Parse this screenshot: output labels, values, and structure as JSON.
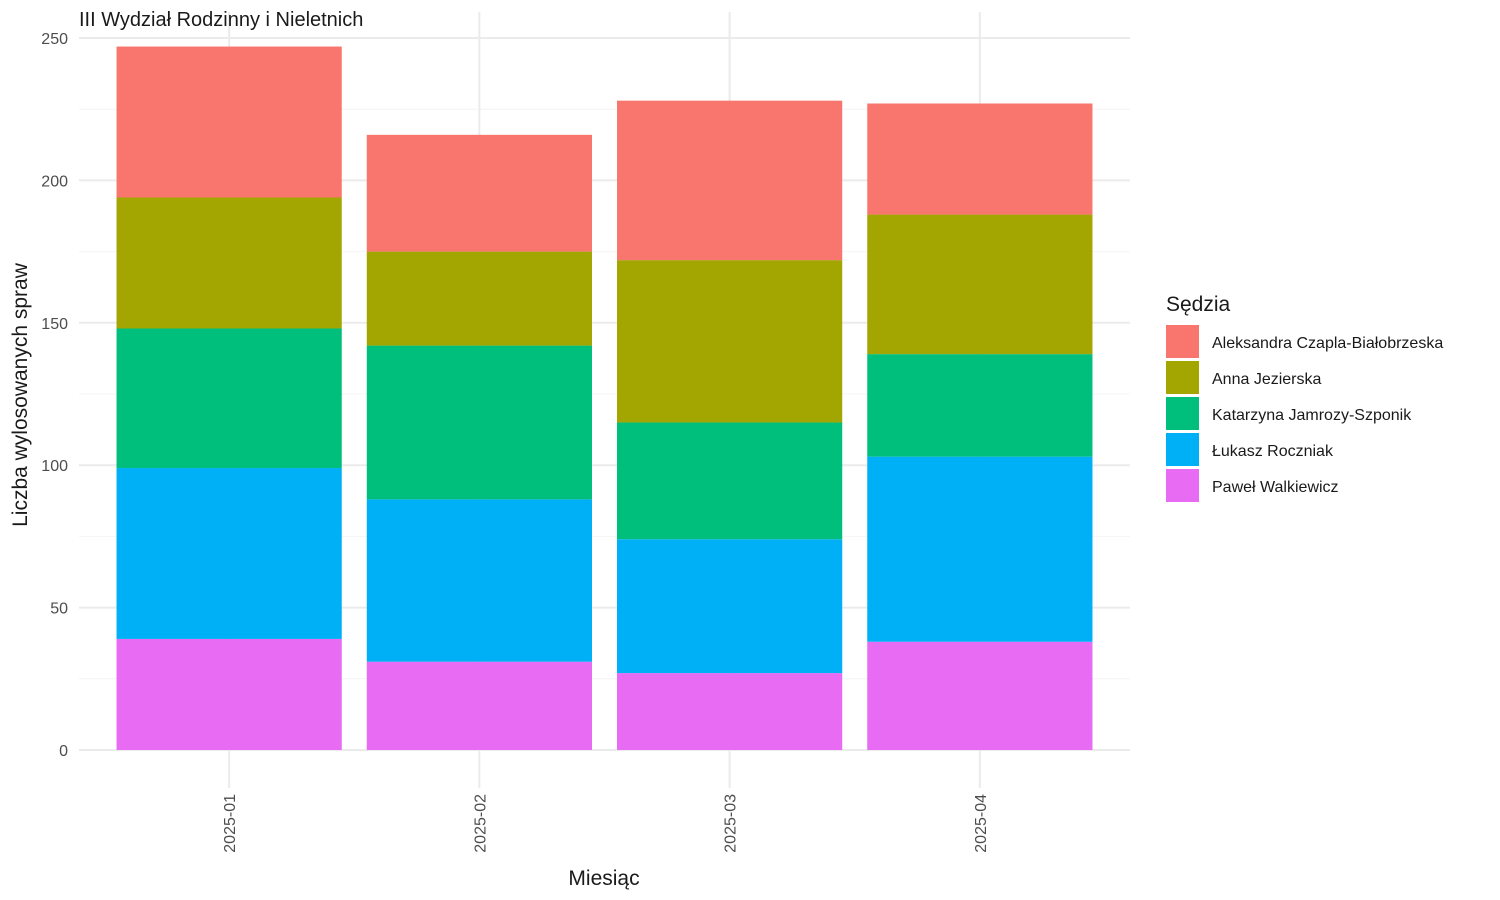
{
  "chart_data": {
    "type": "bar",
    "stacked": true,
    "title": "III Wydział Rodzinny i Nieletnich",
    "xlabel": "Miesiąc",
    "ylabel": "Liczba wylosowanych spraw",
    "ylim": [
      0,
      250
    ],
    "yticks": [
      "0",
      "50",
      "100",
      "150",
      "200",
      "250"
    ],
    "categories": [
      "2025-01",
      "2025-02",
      "2025-03",
      "2025-04"
    ],
    "legend_title": "Sędzia",
    "legend_position": "right",
    "grid": true,
    "series": [
      {
        "name": "Aleksandra Czapla-Białobrzeska",
        "color": "#F8766D",
        "values": [
          53,
          41,
          56,
          39
        ]
      },
      {
        "name": "Anna Jezierska",
        "color": "#A3A500",
        "values": [
          46,
          33,
          57,
          49
        ]
      },
      {
        "name": "Katarzyna Jamrozy-Szponik",
        "color": "#00BF7D",
        "values": [
          49,
          54,
          41,
          36
        ]
      },
      {
        "name": "Łukasz Roczniak",
        "color": "#00B0F6",
        "values": [
          60,
          57,
          47,
          65
        ]
      },
      {
        "name": "Paweł Walkiewicz",
        "color": "#E76BF3",
        "values": [
          39,
          31,
          27,
          38
        ]
      }
    ]
  }
}
